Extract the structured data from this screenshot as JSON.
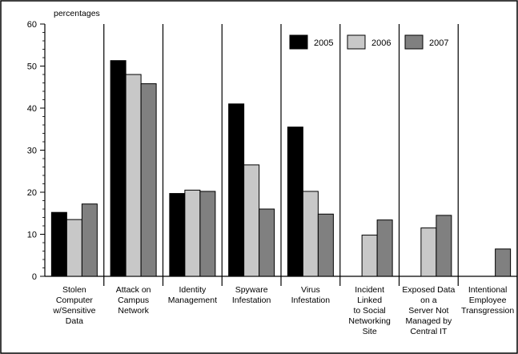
{
  "chart_data": {
    "type": "bar",
    "ylabel": "percentages",
    "ylim": [
      0,
      60
    ],
    "yticks": [
      0,
      10,
      20,
      30,
      40,
      50,
      60
    ],
    "categories": [
      [
        "Stolen",
        "Computer",
        "w/Sensitive",
        "Data"
      ],
      [
        "Attack on",
        "Campus",
        "Network"
      ],
      [
        "Identity",
        "Management"
      ],
      [
        "Spyware",
        "Infestation"
      ],
      [
        "Virus",
        "Infestation"
      ],
      [
        "Incident",
        "Linked",
        "to Social",
        "Networking",
        "Site"
      ],
      [
        "Exposed Data",
        "on a",
        "Server  Not",
        "Managed by",
        "Central IT"
      ],
      [
        "Intentional",
        "Employee",
        "Transgression"
      ]
    ],
    "series": [
      {
        "name": "2005",
        "color": "#000000",
        "values": [
          15.2,
          51.3,
          19.7,
          41.0,
          35.5,
          null,
          null,
          null
        ]
      },
      {
        "name": "2006",
        "color": "#c8c8c8",
        "values": [
          13.5,
          48.0,
          20.5,
          26.5,
          20.2,
          9.8,
          11.5,
          null
        ]
      },
      {
        "name": "2007",
        "color": "#808080",
        "values": [
          17.2,
          45.8,
          20.2,
          16.0,
          14.8,
          13.4,
          14.5,
          6.5
        ]
      }
    ],
    "legend_position": "top-right",
    "grid": "vertical-separators"
  }
}
